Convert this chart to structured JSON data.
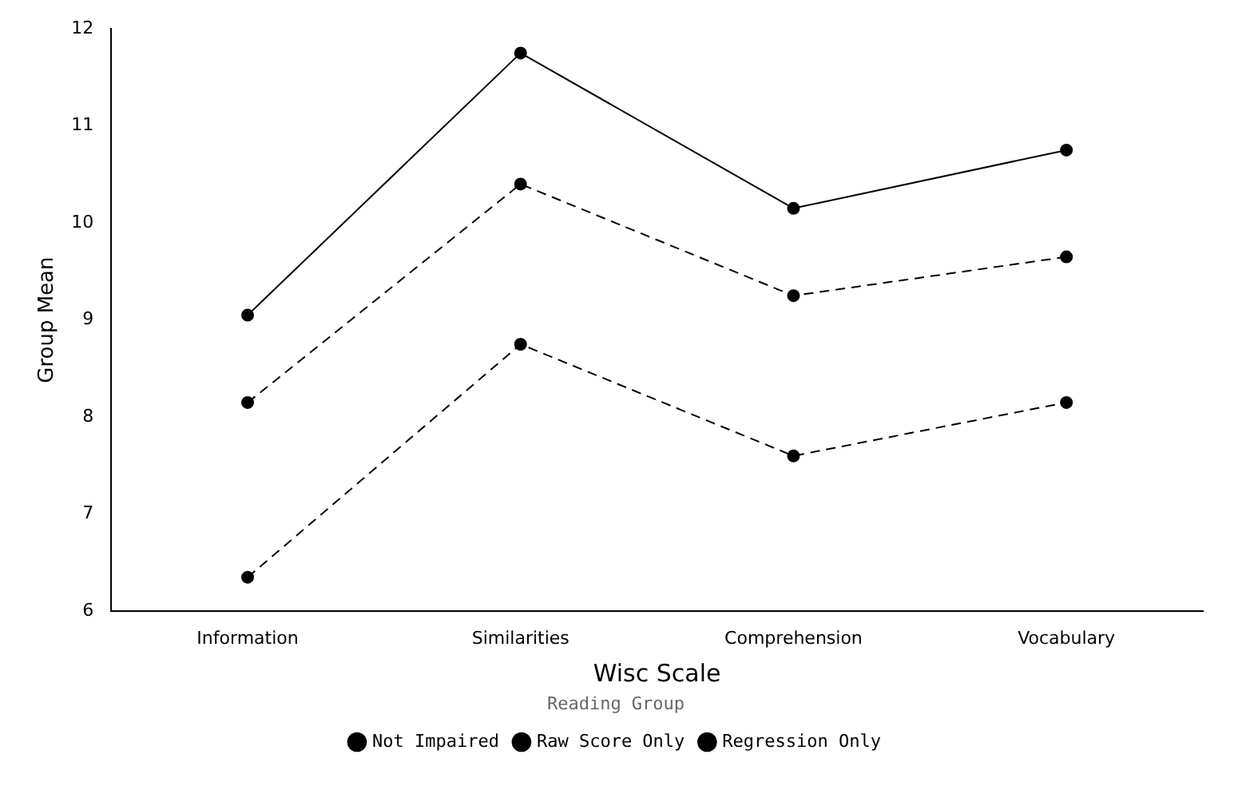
{
  "chart_data": {
    "type": "line",
    "xlabel": "Wisc Scale",
    "ylabel": "Group Mean",
    "legend_title": "Reading Group",
    "categories": [
      "Information",
      "Similarities",
      "Comprehension",
      "Vocabulary"
    ],
    "ylim": [
      6,
      12
    ],
    "yticks": [
      6,
      7,
      8,
      9,
      10,
      11,
      12
    ],
    "grid": false,
    "legend": "bottom",
    "marker": "circle",
    "series": [
      {
        "name": "Not Impaired",
        "color": "#000000",
        "line_style": "dashed",
        "values": [
          8.15,
          10.4,
          9.25,
          9.65
        ]
      },
      {
        "name": "Raw Score Only",
        "color": "#000000",
        "line_style": "solid",
        "values": [
          9.05,
          11.75,
          10.15,
          10.75
        ]
      },
      {
        "name": "Regression Only",
        "color": "#000000",
        "line_style": "dashed",
        "values": [
          6.35,
          8.75,
          7.6,
          8.15
        ]
      }
    ]
  }
}
